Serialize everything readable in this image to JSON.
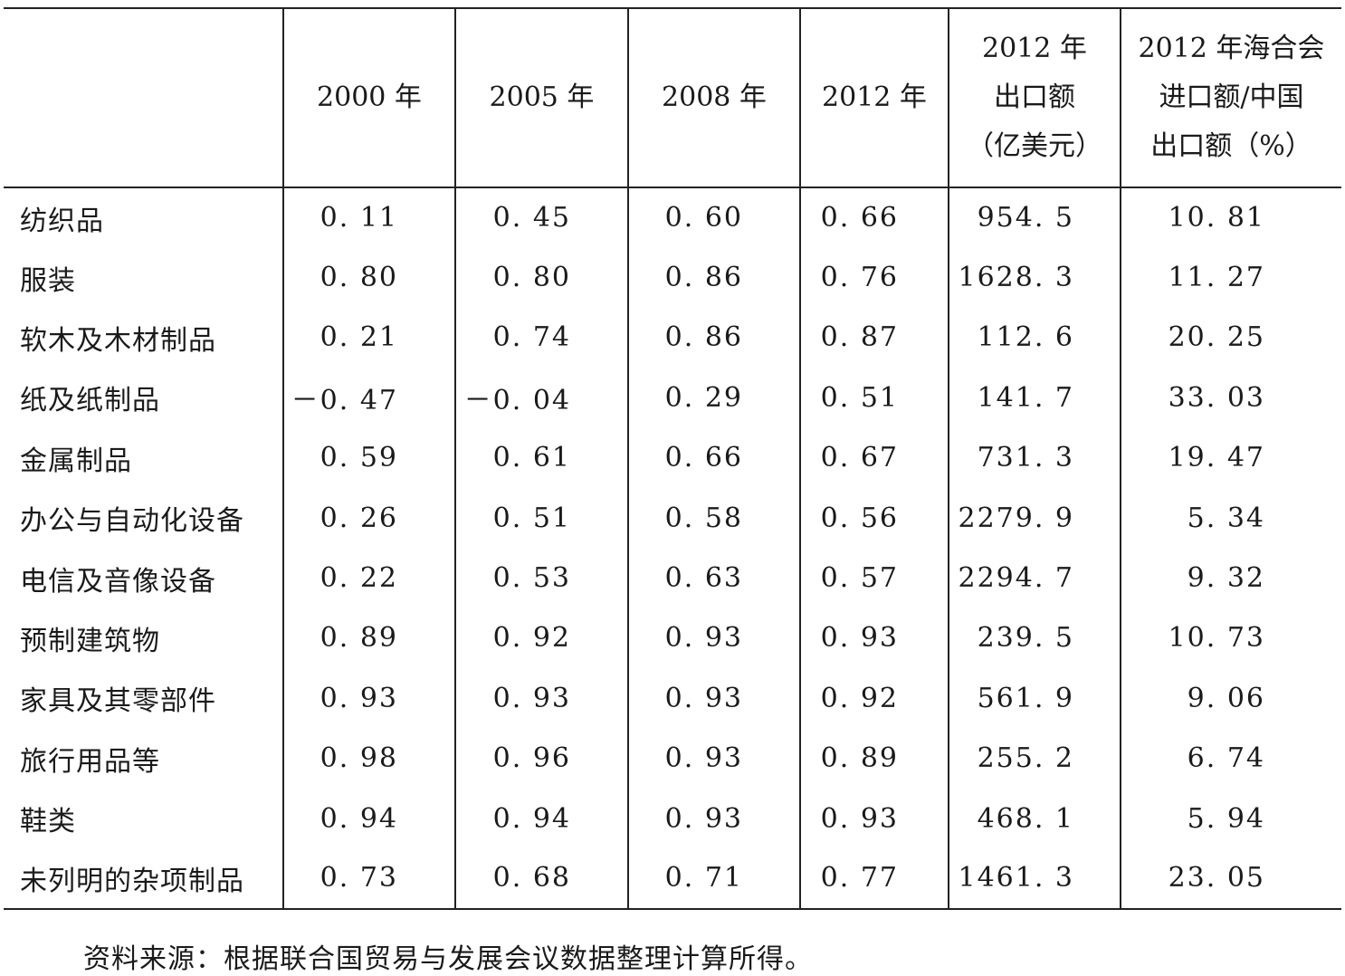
{
  "table": {
    "headers": [
      {
        "lines": [
          ""
        ]
      },
      {
        "lines": [
          "2000 年"
        ]
      },
      {
        "lines": [
          "2005 年"
        ]
      },
      {
        "lines": [
          "2008 年"
        ]
      },
      {
        "lines": [
          "2012 年"
        ]
      },
      {
        "lines": [
          "2012 年",
          "出口额",
          "（亿美元）"
        ]
      },
      {
        "lines": [
          "2012 年海合会",
          "进口额/中国",
          "出口额（%）"
        ]
      }
    ],
    "rows": [
      [
        "纺织品",
        "0. 11",
        "0. 45",
        "0. 60",
        "0. 66",
        "954. 5",
        "10. 81"
      ],
      [
        "服装",
        "0. 80",
        "0. 80",
        "0. 86",
        "0. 76",
        "1628. 3",
        "11. 27"
      ],
      [
        "软木及木材制品",
        "0. 21",
        "0. 74",
        "0. 86",
        "0. 87",
        "112. 6",
        "20. 25"
      ],
      [
        "纸及纸制品",
        "－0. 47",
        "－0. 04",
        "0. 29",
        "0. 51",
        "141. 7",
        "33. 03"
      ],
      [
        "金属制品",
        "0. 59",
        "0. 61",
        "0. 66",
        "0. 67",
        "731. 3",
        "19. 47"
      ],
      [
        "办公与自动化设备",
        "0. 26",
        "0. 51",
        "0. 58",
        "0. 56",
        "2279. 9",
        "5. 34"
      ],
      [
        "电信及音像设备",
        "0. 22",
        "0. 53",
        "0. 63",
        "0. 57",
        "2294. 7",
        "9. 32"
      ],
      [
        "预制建筑物",
        "0. 89",
        "0. 92",
        "0. 93",
        "0. 93",
        "239. 5",
        "10. 73"
      ],
      [
        "家具及其零部件",
        "0. 93",
        "0. 93",
        "0. 93",
        "0. 92",
        "561. 9",
        "9. 06"
      ],
      [
        "旅行用品等",
        "0. 98",
        "0. 96",
        "0. 93",
        "0. 89",
        "255. 2",
        "6. 74"
      ],
      [
        "鞋类",
        "0. 94",
        "0. 94",
        "0. 93",
        "0. 93",
        "468. 1",
        "5. 94"
      ],
      [
        "未列明的杂项制品",
        "0. 73",
        "0. 68",
        "0. 71",
        "0. 77",
        "1461. 3",
        "23. 05"
      ]
    ]
  },
  "source_note": "资料来源：根据联合国贸易与发展会议数据整理计算所得。"
}
